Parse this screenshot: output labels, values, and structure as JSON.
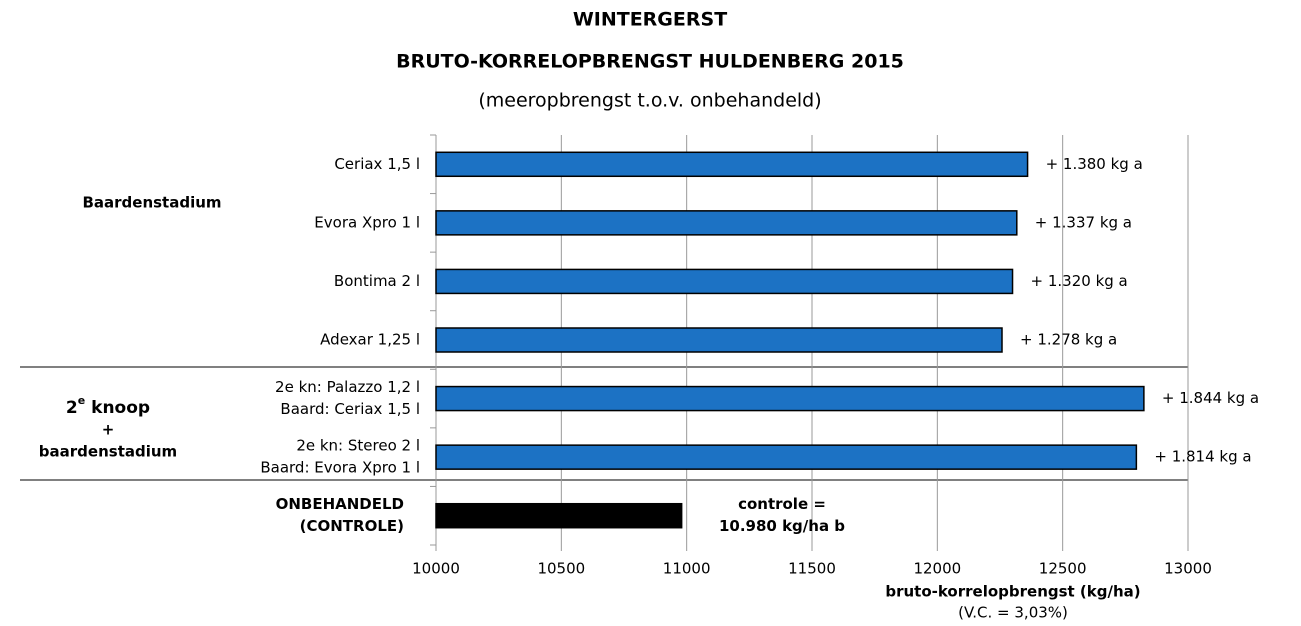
{
  "chart_data": {
    "type": "bar",
    "orientation": "horizontal",
    "title": "WINTERGERST",
    "subtitle": "BRUTO-KORRELOPBRENGST HULDENBERG 2015",
    "subtitle2": "(meeropbrengst t.o.v. onbehandeld)",
    "x_label": "bruto-korrelopbrengst (kg/ha)",
    "x_note": "(V.C. = 3,03%)",
    "categories": [
      [
        "Ceriax 1,5 l"
      ],
      [
        "Evora Xpro 1 l"
      ],
      [
        "Bontima 2 l"
      ],
      [
        "Adexar 1,25 l"
      ],
      [
        "2e kn: Palazzo 1,2 l",
        "Baard: Ceriax 1,5 l"
      ],
      [
        "2e kn: Stereo 2 l",
        "Baard: Evora Xpro 1 l"
      ],
      [
        "ONBEHANDELD",
        "(CONTROLE)"
      ]
    ],
    "values": [
      12360,
      12317,
      12300,
      12258,
      12824,
      12794,
      10980
    ],
    "colors": [
      "#1c72c4",
      "#1c72c4",
      "#1c72c4",
      "#1c72c4",
      "#1c72c4",
      "#1c72c4",
      "#000000"
    ],
    "bar_annotations": [
      [
        "+ 1.380 kg  a"
      ],
      [
        "+ 1.337 kg  a"
      ],
      [
        "+ 1.320 kg  a"
      ],
      [
        "+ 1.278 kg  a"
      ],
      [
        "+ 1.844 kg  a"
      ],
      [
        "+ 1.814 kg  a"
      ],
      [
        "controle =",
        "10.980 kg/ha  b"
      ]
    ],
    "groups": [
      [
        "Baardenstadium"
      ],
      [
        "2",
        "e",
        " knoop",
        "+",
        "baardenstadium"
      ]
    ],
    "xlim": [
      10000,
      13000
    ],
    "xticks": [
      10000,
      10500,
      11000,
      11500,
      12000,
      12500,
      13000
    ],
    "grid": true
  }
}
